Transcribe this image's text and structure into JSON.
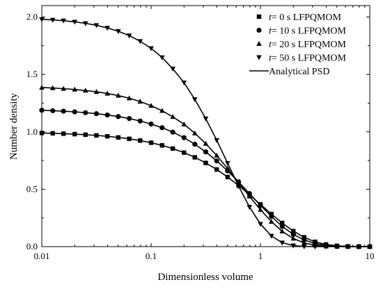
{
  "chart_data": {
    "type": "line",
    "xlabel": "Dimensionless volume",
    "ylabel": "Number density",
    "xscale": "log",
    "xlim": [
      0.01,
      10
    ],
    "ylim": [
      0.0,
      2.1
    ],
    "xticks": [
      {
        "value": 0.01,
        "label": "0.01"
      },
      {
        "value": 0.1,
        "label": "0.1"
      },
      {
        "value": 1,
        "label": "1"
      },
      {
        "value": 10,
        "label": "10"
      }
    ],
    "yticks": [
      {
        "value": 0.0,
        "label": "0.0"
      },
      {
        "value": 0.5,
        "label": "0.5"
      },
      {
        "value": 1.0,
        "label": "1.0"
      },
      {
        "value": 1.5,
        "label": "1.5"
      },
      {
        "value": 2.0,
        "label": "2.0"
      }
    ],
    "legend_position": "top-right",
    "grid": false,
    "series": [
      {
        "label": {
          "italic": "t",
          "rest": "= 0   s  LFPQMOM"
        },
        "marker": "square",
        "x": [
          0.01,
          0.0126,
          0.0158,
          0.02,
          0.0251,
          0.0316,
          0.0398,
          0.0501,
          0.0631,
          0.0794,
          0.1,
          0.126,
          0.158,
          0.2,
          0.251,
          0.316,
          0.398,
          0.501,
          0.631,
          0.794,
          1.0,
          1.26,
          1.58,
          2.0,
          2.51,
          3.16,
          3.98,
          5.01,
          6.31,
          7.94,
          10.0
        ],
        "y": [
          0.99,
          0.987,
          0.984,
          0.98,
          0.975,
          0.969,
          0.961,
          0.951,
          0.939,
          0.924,
          0.905,
          0.882,
          0.854,
          0.819,
          0.778,
          0.729,
          0.672,
          0.606,
          0.532,
          0.452,
          0.368,
          0.284,
          0.206,
          0.135,
          0.081,
          0.042,
          0.019,
          0.007,
          0.002,
          0.0,
          0.0
        ]
      },
      {
        "label": {
          "italic": "t",
          "rest": "= 10 s  LFPQMOM"
        },
        "marker": "circle",
        "x": [
          0.01,
          0.0126,
          0.0158,
          0.02,
          0.0251,
          0.0316,
          0.0398,
          0.0501,
          0.0631,
          0.0794,
          0.1,
          0.126,
          0.158,
          0.2,
          0.251,
          0.316,
          0.398,
          0.501,
          0.631,
          0.794,
          1.0,
          1.26,
          1.58,
          2.0,
          2.51,
          3.16,
          3.98,
          5.01,
          6.31,
          7.94,
          10.0
        ],
        "y": [
          1.188,
          1.184,
          1.18,
          1.174,
          1.167,
          1.158,
          1.147,
          1.133,
          1.116,
          1.094,
          1.068,
          1.036,
          0.997,
          0.949,
          0.892,
          0.825,
          0.747,
          0.66,
          0.564,
          0.462,
          0.36,
          0.263,
          0.176,
          0.107,
          0.058,
          0.027,
          0.01,
          0.003,
          0.001,
          0.0,
          0.0
        ]
      },
      {
        "label": {
          "italic": "t",
          "rest": "= 20 s  LFPQMOM"
        },
        "marker": "triangle-up",
        "x": [
          0.01,
          0.0126,
          0.0158,
          0.02,
          0.0251,
          0.0316,
          0.0398,
          0.0501,
          0.0631,
          0.0794,
          0.1,
          0.126,
          0.158,
          0.2,
          0.251,
          0.316,
          0.398,
          0.501,
          0.631,
          0.794,
          1.0,
          1.26,
          1.58,
          2.0,
          2.51,
          3.16,
          3.98,
          5.01,
          6.31,
          7.94,
          10.0
        ],
        "y": [
          1.386,
          1.382,
          1.376,
          1.369,
          1.36,
          1.349,
          1.334,
          1.316,
          1.293,
          1.264,
          1.228,
          1.184,
          1.131,
          1.066,
          0.988,
          0.897,
          0.794,
          0.68,
          0.56,
          0.438,
          0.322,
          0.218,
          0.133,
          0.071,
          0.032,
          0.012,
          0.003,
          0.001,
          0.0,
          0.0,
          0.0
        ]
      },
      {
        "label": {
          "italic": "t",
          "rest": "= 50 s  LFPQMOM"
        },
        "marker": "triangle-down",
        "x": [
          0.01,
          0.0126,
          0.0158,
          0.02,
          0.0251,
          0.0316,
          0.0398,
          0.0501,
          0.0631,
          0.0794,
          0.1,
          0.126,
          0.158,
          0.2,
          0.251,
          0.316,
          0.398,
          0.501,
          0.631,
          0.794,
          1.0,
          1.26,
          1.58,
          2.0,
          2.51,
          3.16,
          3.98,
          5.01,
          6.31,
          7.94,
          10.0
        ],
        "y": [
          1.98,
          1.975,
          1.968,
          1.958,
          1.945,
          1.928,
          1.905,
          1.876,
          1.838,
          1.789,
          1.727,
          1.648,
          1.549,
          1.428,
          1.283,
          1.115,
          0.927,
          0.727,
          0.527,
          0.345,
          0.197,
          0.093,
          0.034,
          0.009,
          0.001,
          0.0,
          0.0,
          0.0,
          0.0,
          0.0,
          0.0
        ]
      },
      {
        "label": {
          "italic": "",
          "rest": "Analytical PSD"
        },
        "marker": "line"
      }
    ]
  }
}
